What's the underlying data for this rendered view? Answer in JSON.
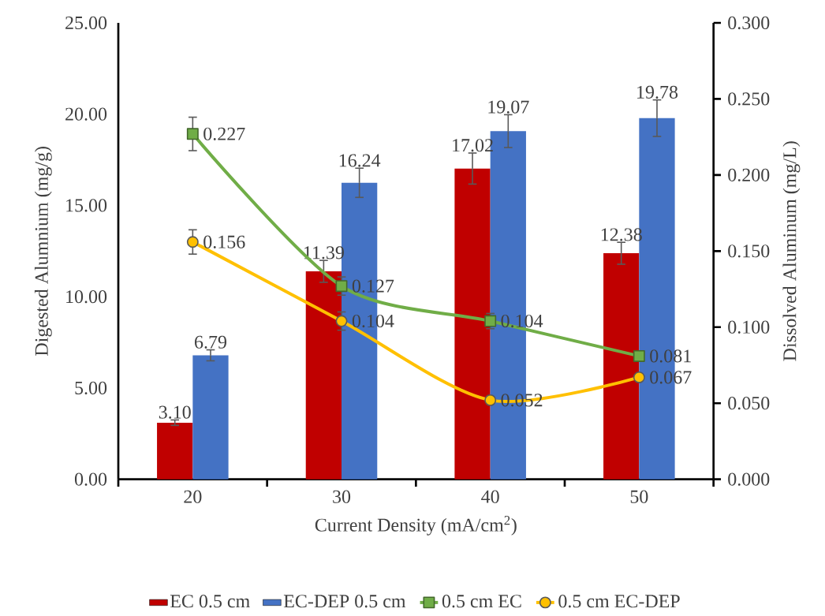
{
  "chart_data": {
    "type": "bar",
    "xlabel": "Current Density (mA/cm$^{2}$)",
    "ylabel": "Digested Alumnium (mg/g)",
    "y2label": "Dissolved Aluminum (mg/L)",
    "categories": [
      "20",
      "30",
      "40",
      "50"
    ],
    "ylim": [
      0,
      25
    ],
    "yticks": [
      {
        "value": 0,
        "label": "0.00"
      },
      {
        "value": 5,
        "label": "5.00"
      },
      {
        "value": 10,
        "label": "10.00"
      },
      {
        "value": 15,
        "label": "15.00"
      },
      {
        "value": 20,
        "label": "20.00"
      },
      {
        "value": 25,
        "label": "25.00"
      }
    ],
    "y2lim": [
      0,
      0.3
    ],
    "y2ticks": [
      {
        "value": 0,
        "label": "0.000"
      },
      {
        "value": 0.05,
        "label": "0.050"
      },
      {
        "value": 0.1,
        "label": "0.100"
      },
      {
        "value": 0.15,
        "label": "0.150"
      },
      {
        "value": 0.2,
        "label": "0.200"
      },
      {
        "value": 0.25,
        "label": "0.250"
      },
      {
        "value": 0.3,
        "label": "0.300"
      }
    ],
    "legend": "bottom",
    "series": [
      {
        "name": "EC 0.5 cm",
        "color": "#c00000",
        "values": [
          3.1,
          11.39,
          17.02,
          12.38
        ],
        "errors": [
          0.15,
          0.6,
          0.85,
          0.6
        ],
        "value_labels": [
          "3.10",
          "11.39",
          "17.02",
          "12.38"
        ]
      },
      {
        "name": "EC-DEP 0.5 cm",
        "color": "#4472c4",
        "values": [
          6.79,
          16.24,
          19.07,
          19.78
        ],
        "errors": [
          0.3,
          0.8,
          0.9,
          1.0
        ],
        "value_labels": [
          "6.79",
          "16.24",
          "19.07",
          "19.78"
        ]
      },
      {
        "name": "0.5 cm EC",
        "type": "line",
        "axis": "y2",
        "color": "#70ad47",
        "marker": "square",
        "values": [
          0.227,
          0.127,
          0.104,
          0.081
        ],
        "errors": [
          0.011,
          0.006,
          0.005,
          null
        ],
        "value_labels": [
          "0.227",
          "0.127",
          "0.104",
          "0.081"
        ]
      },
      {
        "name": "0.5 cm EC-DEP",
        "type": "line",
        "axis": "y2",
        "color": "#ffc000",
        "marker": "circle",
        "values": [
          0.156,
          0.104,
          0.052,
          0.067
        ],
        "errors": [
          0.008,
          0.006,
          null,
          null
        ],
        "value_labels": [
          "0.156",
          "0.104",
          "0.052",
          "0.067"
        ]
      }
    ]
  }
}
